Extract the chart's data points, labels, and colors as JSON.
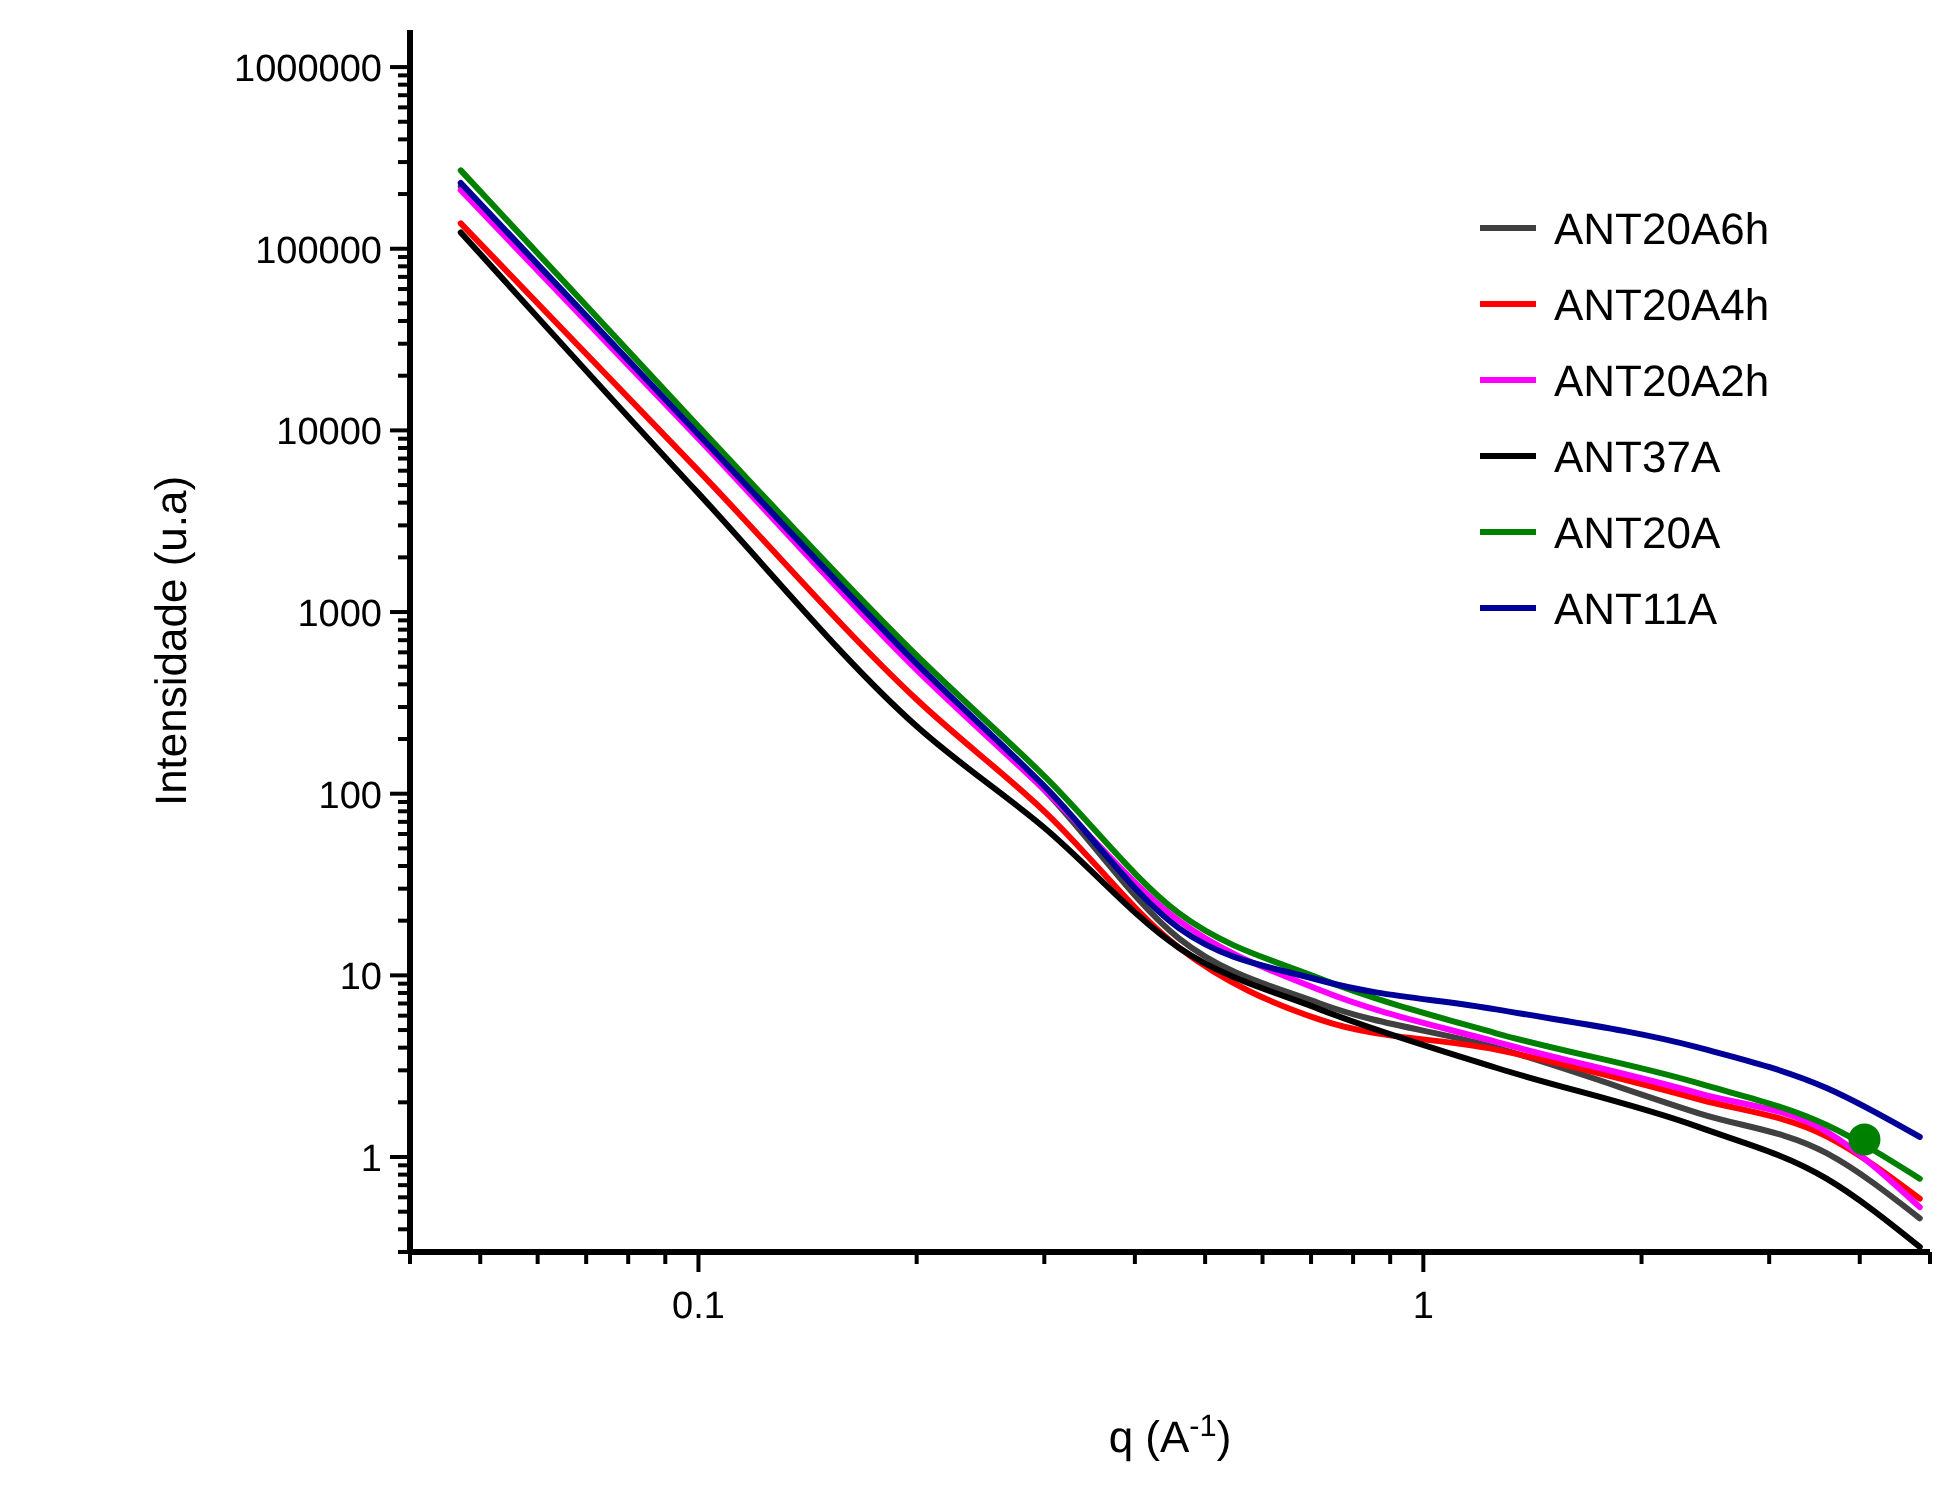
{
  "chart_data": {
    "type": "line",
    "xlabel": "q (A$^{-1}$)",
    "ylabel": "Intensidade (u.a)",
    "log": "xy",
    "grid": false,
    "legend": "top right",
    "line_style": "solid",
    "xlim": [
      0.04,
      5
    ],
    "ylim": [
      0.3,
      1600000
    ],
    "xticks": [
      {
        "value": 0.04,
        "label": null
      },
      {
        "value": 0.05,
        "label": null
      },
      {
        "value": 0.06,
        "label": null
      },
      {
        "value": 0.07,
        "label": null
      },
      {
        "value": 0.08,
        "label": null
      },
      {
        "value": 0.09,
        "label": null
      },
      0.1,
      {
        "value": 0.2,
        "label": null
      },
      {
        "value": 0.3,
        "label": null
      },
      {
        "value": 0.4,
        "label": null
      },
      {
        "value": 0.5,
        "label": null
      },
      {
        "value": 0.6,
        "label": null
      },
      {
        "value": 0.7,
        "label": null
      },
      {
        "value": 0.8,
        "label": null
      },
      {
        "value": 0.9,
        "label": null
      },
      1,
      {
        "value": 2,
        "label": null
      },
      {
        "value": 3,
        "label": null
      },
      {
        "value": 4,
        "label": null
      },
      {
        "value": 5,
        "label": null
      }
    ],
    "yticks": [
      {
        "value": 0.3,
        "label": null
      },
      {
        "value": 0.4,
        "label": null
      },
      {
        "value": 0.5,
        "label": null
      },
      {
        "value": 0.6,
        "label": null
      },
      {
        "value": 0.7,
        "label": null
      },
      {
        "value": 0.8,
        "label": null
      },
      {
        "value": 0.9,
        "label": null
      },
      1,
      {
        "value": 2,
        "label": null
      },
      {
        "value": 3,
        "label": null
      },
      {
        "value": 4,
        "label": null
      },
      {
        "value": 5,
        "label": null
      },
      {
        "value": 6,
        "label": null
      },
      {
        "value": 7,
        "label": null
      },
      {
        "value": 8,
        "label": null
      },
      {
        "value": 9,
        "label": null
      },
      10,
      {
        "value": 20,
        "label": null
      },
      {
        "value": 30,
        "label": null
      },
      {
        "value": 40,
        "label": null
      },
      {
        "value": 50,
        "label": null
      },
      {
        "value": 60,
        "label": null
      },
      {
        "value": 70,
        "label": null
      },
      {
        "value": 80,
        "label": null
      },
      {
        "value": 90,
        "label": null
      },
      100,
      {
        "value": 200,
        "label": null
      },
      {
        "value": 300,
        "label": null
      },
      {
        "value": 400,
        "label": null
      },
      {
        "value": 500,
        "label": null
      },
      {
        "value": 600,
        "label": null
      },
      {
        "value": 700,
        "label": null
      },
      {
        "value": 800,
        "label": null
      },
      {
        "value": 900,
        "label": null
      },
      1000,
      {
        "value": 2000,
        "label": null
      },
      {
        "value": 3000,
        "label": null
      },
      {
        "value": 4000,
        "label": null
      },
      {
        "value": 5000,
        "label": null
      },
      {
        "value": 6000,
        "label": null
      },
      {
        "value": 7000,
        "label": null
      },
      {
        "value": 8000,
        "label": null
      },
      {
        "value": 9000,
        "label": null
      },
      10000,
      {
        "value": 20000,
        "label": null
      },
      {
        "value": 30000,
        "label": null
      },
      {
        "value": 40000,
        "label": null
      },
      {
        "value": 50000,
        "label": null
      },
      {
        "value": 60000,
        "label": null
      },
      {
        "value": 70000,
        "label": null
      },
      {
        "value": 80000,
        "label": null
      },
      {
        "value": 90000,
        "label": null
      },
      100000,
      {
        "value": 200000,
        "label": null
      },
      {
        "value": 300000,
        "label": null
      },
      {
        "value": 400000,
        "label": null
      },
      {
        "value": 500000,
        "label": null
      },
      {
        "value": 600000,
        "label": null
      },
      {
        "value": 700000,
        "label": null
      },
      {
        "value": 800000,
        "label": null
      },
      {
        "value": 900000,
        "label": null
      },
      1000000
    ],
    "x": [
      0.047,
      0.1,
      0.2,
      0.3,
      0.46,
      0.72,
      1.26,
      2.4,
      3.6,
      4.84
    ],
    "series": [
      {
        "name": "ANT20A6h",
        "color": "#404040",
        "values": [
          220000,
          9300,
          500,
          105,
          16,
          7,
          4.0,
          1.74,
          1.05,
          0.46
        ]
      },
      {
        "name": "ANT20A4h",
        "color": "#ff0000",
        "values": [
          138000,
          6000,
          330,
          80,
          14.2,
          5.7,
          3.9,
          2.08,
          1.3,
          0.59
        ]
      },
      {
        "name": "ANT20A2h",
        "color": "#ff00ff",
        "values": [
          210000,
          9000,
          480,
          105,
          20,
          8.3,
          4.3,
          2.24,
          1.38,
          0.53
        ]
      },
      {
        "name": "ANT37A",
        "color": "#000000",
        "values": [
          123000,
          4500,
          235,
          65,
          14.2,
          6.5,
          3.1,
          1.46,
          0.76,
          0.32
        ]
      },
      {
        "name": "ANT20A",
        "color": "#008000",
        "values": [
          270000,
          10500,
          577,
          125,
          22,
          9.6,
          4.8,
          2.54,
          1.5,
          0.76
        ]
      },
      {
        "name": "ANT11A",
        "color": "#000099",
        "values": [
          230000,
          9500,
          520,
          110,
          18.2,
          9.4,
          6.5,
          4.0,
          2.4,
          1.29
        ]
      },
      {
        "type": "scatter",
        "marker": "circle",
        "color": "#008000",
        "x": [
          4.06
        ],
        "values": [
          1.25
        ]
      }
    ]
  }
}
